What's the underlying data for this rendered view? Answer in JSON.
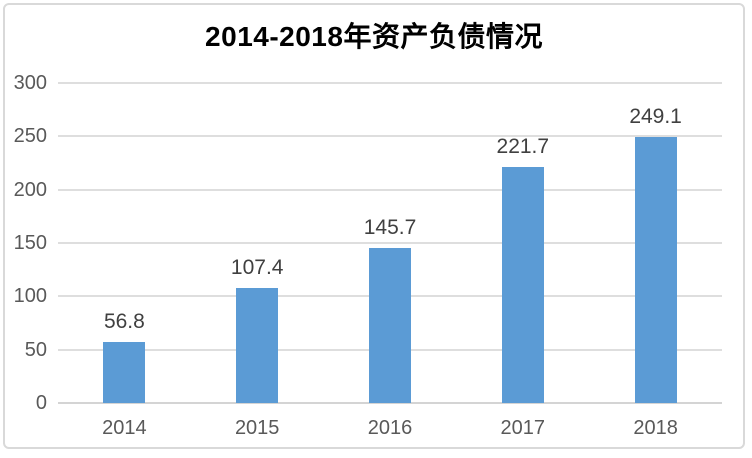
{
  "chart_data": {
    "type": "bar",
    "title": "2014-2018年资产负债情况",
    "categories": [
      "2014",
      "2015",
      "2016",
      "2017",
      "2018"
    ],
    "values": [
      56.8,
      107.4,
      145.7,
      221.7,
      249.1
    ],
    "value_labels": [
      "56.8",
      "107.4",
      "145.7",
      "221.7",
      "249.1"
    ],
    "xlabel": "",
    "ylabel": "",
    "ylim": [
      0,
      300
    ],
    "yticks": [
      0,
      50,
      100,
      150,
      200,
      250,
      300
    ],
    "grid": "horizontal",
    "legend": "none",
    "bar_color": "#5B9BD5"
  },
  "colors": {
    "bar": "#5B9BD5",
    "title_text": "#000000",
    "tick_label_text": "#595959",
    "value_label_text": "#404040",
    "gridline": "#DEDEDE",
    "axis_line": "#D4D4D4",
    "frame_border": "#D9D9D9",
    "background": "#FFFFFF"
  }
}
